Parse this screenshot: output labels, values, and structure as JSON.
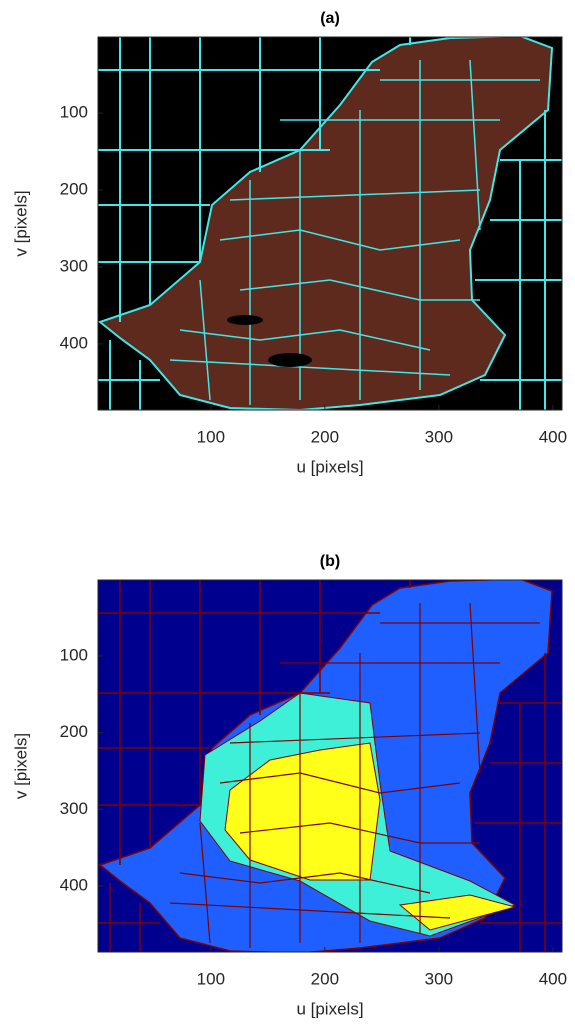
{
  "chart_data": [
    {
      "type": "image",
      "title": "(a)",
      "xlabel": "u [pixels]",
      "ylabel": "v [pixels]",
      "xlim": [
        1,
        408
      ],
      "ylim": [
        486,
        1
      ],
      "xticks": [
        100,
        200,
        300,
        400
      ],
      "yticks": [
        100,
        200,
        300,
        400
      ]
    },
    {
      "type": "image",
      "title": "(b)",
      "xlabel": "u [pixels]",
      "ylabel": "v [pixels]",
      "xlim": [
        1,
        408
      ],
      "ylim": [
        486,
        1
      ],
      "xticks": [
        100,
        200,
        300,
        400
      ],
      "yticks": [
        100,
        200,
        300,
        400
      ]
    }
  ]
}
